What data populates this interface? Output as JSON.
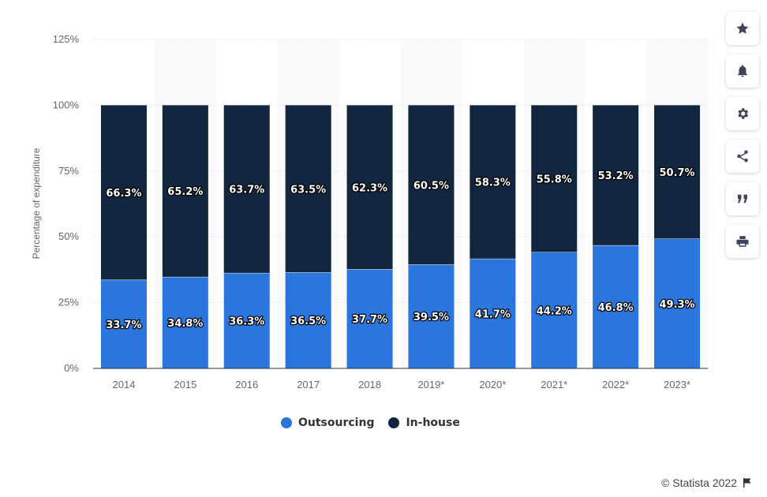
{
  "chart_data": {
    "type": "bar",
    "stacked": true,
    "categories": [
      "2014",
      "2015",
      "2016",
      "2017",
      "2018",
      "2019*",
      "2020*",
      "2021*",
      "2022*",
      "2023*"
    ],
    "series": [
      {
        "name": "Outsourcing",
        "color": "#2a76dd",
        "values": [
          33.7,
          34.8,
          36.3,
          36.5,
          37.7,
          39.5,
          41.7,
          44.2,
          46.8,
          49.3
        ],
        "labels": [
          "33.7%",
          "34.8%",
          "36.3%",
          "36.5%",
          "37.7%",
          "39.5%",
          "41.7%",
          "44.2%",
          "46.8%",
          "49.3%"
        ]
      },
      {
        "name": "In-house",
        "color": "#12263f",
        "values": [
          66.3,
          65.2,
          63.7,
          63.5,
          62.3,
          60.5,
          58.3,
          55.8,
          53.2,
          50.7
        ],
        "labels": [
          "66.3%",
          "65.2%",
          "63.7%",
          "63.5%",
          "62.3%",
          "60.5%",
          "58.3%",
          "55.8%",
          "53.2%",
          "50.7%"
        ]
      }
    ],
    "ylabel": "Percentage of expenditure",
    "ylim": [
      0,
      125
    ],
    "yticks": [
      0,
      25,
      50,
      75,
      100,
      125
    ],
    "ytick_labels": [
      "0%",
      "25%",
      "50%",
      "75%",
      "100%",
      "125%"
    ],
    "grid": true,
    "legend_position": "bottom"
  },
  "legend": {
    "outsourcing": "Outsourcing",
    "inhouse": "In-house"
  },
  "credit": "© Statista 2022",
  "toolbar": [
    "star-icon",
    "bell-icon",
    "gear-icon",
    "share-icon",
    "quote-icon",
    "print-icon"
  ]
}
